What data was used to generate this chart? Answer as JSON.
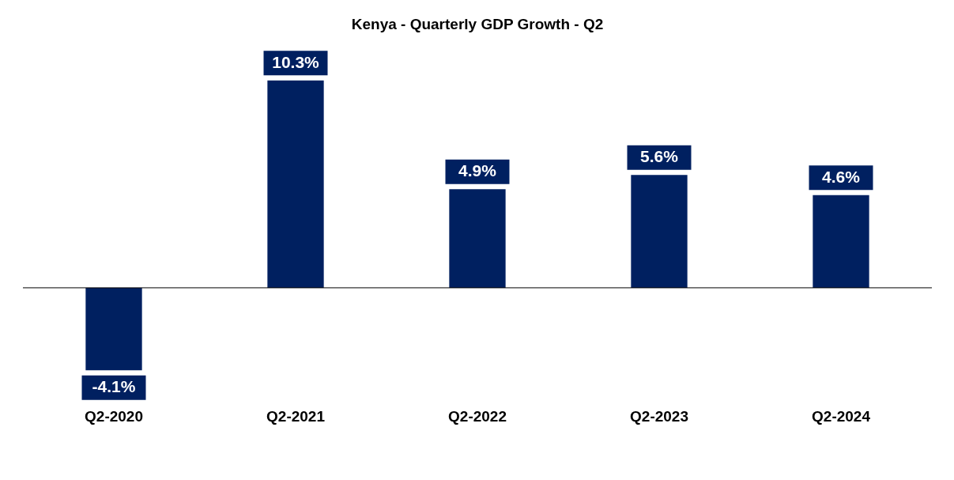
{
  "chart_data": {
    "type": "bar",
    "title": "Kenya - Quarterly GDP Growth - Q2",
    "categories": [
      "Q2-2020",
      "Q2-2021",
      "Q2-2022",
      "Q2-2023",
      "Q2-2024"
    ],
    "values": [
      -4.1,
      10.3,
      4.9,
      5.6,
      4.6
    ],
    "value_labels": [
      "-4.1%",
      "10.3%",
      "4.9%",
      "5.6%",
      "4.6%"
    ],
    "color": "#002060",
    "grid": false
  }
}
